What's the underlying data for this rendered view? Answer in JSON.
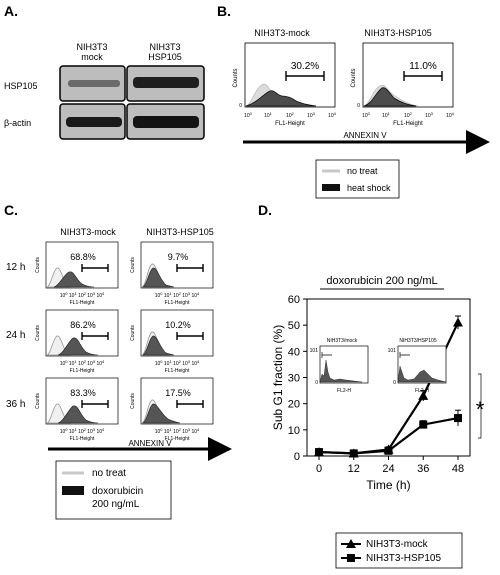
{
  "panels": {
    "a": {
      "label": "A.",
      "columns": [
        {
          "line1": "NIH3T3",
          "line2": "mock"
        },
        {
          "line1": "NIH3T3",
          "line2": "HSP105"
        }
      ],
      "rows": [
        "HSP105",
        "β-actin"
      ]
    },
    "b": {
      "label": "B.",
      "histograms": [
        {
          "title": "NIH3T3-mock",
          "percent": "30.2%"
        },
        {
          "title": "NIH3T3-HSP105",
          "percent": "11.0%"
        }
      ],
      "ylabel": "Counts",
      "xlabel": "FL1-Height",
      "ticks": [
        "10",
        "10",
        "10",
        "10",
        "10"
      ],
      "tick_exponents": [
        "0",
        "1",
        "2",
        "3",
        "4"
      ],
      "y_top_tick": "",
      "y_zero": "0",
      "axis_caption": "ANNEXIN V",
      "legend": [
        {
          "label": "no treat",
          "color": "#c8c8c8"
        },
        {
          "label": "heat shock",
          "color": "#111111"
        }
      ]
    },
    "c": {
      "label": "C.",
      "columns": [
        "NIH3T3-mock",
        "NIH3T3-HSP105"
      ],
      "rows": [
        {
          "time": "12 h",
          "percents": [
            "68.8%",
            "9.7%"
          ]
        },
        {
          "time": "24 h",
          "percents": [
            "86.2%",
            "10.2%"
          ]
        },
        {
          "time": "36 h",
          "percents": [
            "83.3%",
            "17.5%"
          ]
        }
      ],
      "ylabel": "Counts",
      "xlabel": "FL1-Height",
      "ticks": [
        "10",
        "10",
        "10",
        "10",
        "10"
      ],
      "tick_exponents": [
        "0",
        "1",
        "2",
        "3",
        "4"
      ],
      "y_zero": "0",
      "axis_caption": "ANNEXIN V",
      "legend": [
        {
          "label": "no treat",
          "color": "#c8c8c8"
        },
        {
          "label": "doxorubicin",
          "label2": "200 ng/mL",
          "color": "#111111"
        }
      ]
    },
    "d": {
      "label": "D.",
      "treatment": "doxorubicin 200 ng/mL",
      "inset_titles": [
        "NIH3T3/mock",
        "NIH3T3/HSP105"
      ],
      "inset_xlabel": "FL2-H",
      "inset_yticks": [
        "101",
        "0"
      ],
      "significance": "*"
    }
  },
  "chart_data": {
    "type": "line",
    "title": "doxorubicin 200 ng/mL",
    "xlabel": "Time (h)",
    "ylabel": "Sub G1 fraction (%)",
    "x": [
      0,
      12,
      24,
      36,
      48
    ],
    "xlim": [
      0,
      48
    ],
    "ylim": [
      0,
      60
    ],
    "yticks": [
      0,
      10,
      20,
      30,
      40,
      50,
      60
    ],
    "series": [
      {
        "name": "NIH3T3-mock",
        "marker": "triangle",
        "values": [
          1.5,
          1.0,
          2.5,
          23,
          51
        ],
        "errors": [
          0.8,
          0.8,
          1.0,
          2.0,
          2.5
        ]
      },
      {
        "name": "NIH3T3-HSP105",
        "marker": "square",
        "values": [
          1.5,
          1.0,
          2.0,
          12,
          14.5
        ],
        "errors": [
          0.8,
          0.8,
          1.0,
          1.5,
          3.0
        ]
      }
    ],
    "legend_position": "bottom"
  }
}
